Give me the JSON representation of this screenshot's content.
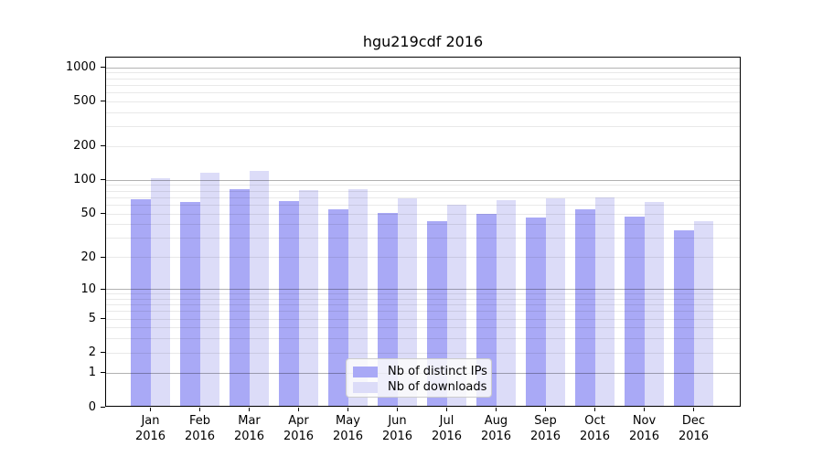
{
  "chart_data": {
    "type": "bar",
    "title": "hgu219cdf 2016",
    "x_months": [
      "Jan",
      "Feb",
      "Mar",
      "Apr",
      "May",
      "Jun",
      "Jul",
      "Aug",
      "Sep",
      "Oct",
      "Nov",
      "Dec"
    ],
    "x_year": "2016",
    "series": [
      {
        "name": "Nb of distinct IPs",
        "color": "#a9a9f6",
        "values": [
          67,
          64,
          82,
          65,
          55,
          51,
          43,
          50,
          46,
          55,
          47,
          35
        ]
      },
      {
        "name": "Nb of downloads",
        "color": "#dcdcf8",
        "values": [
          103,
          116,
          121,
          81,
          82,
          69,
          60,
          66,
          69,
          70,
          64,
          43
        ]
      }
    ],
    "y_ticks": [
      0,
      1,
      2,
      5,
      10,
      20,
      50,
      100,
      200,
      500,
      1000
    ],
    "y_scale": "log10(1+y)",
    "ylim": [
      0,
      1220
    ],
    "grid": "major+minor",
    "legend_position": "lower-center-inside"
  }
}
